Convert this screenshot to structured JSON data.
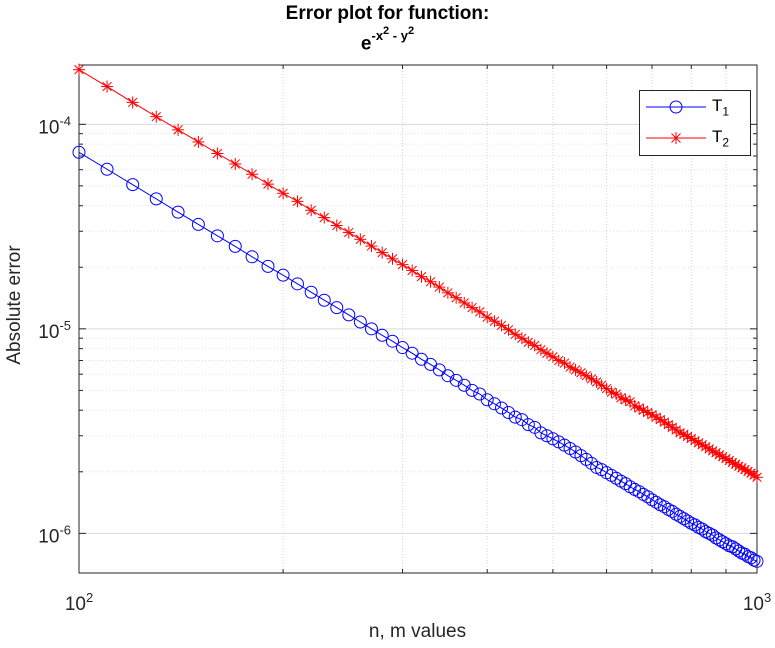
{
  "title": {
    "line1": "Error plot for function:",
    "base": "e",
    "exp_a": "-x",
    "exp_a_pow": "2",
    "exp_mid": " - y",
    "exp_b_pow": "2"
  },
  "chart_data": {
    "type": "line",
    "xscale": "log",
    "yscale": "log",
    "xlim": [
      100,
      1000
    ],
    "ylim": [
      6.4e-07,
      0.000195
    ],
    "xlabel": "n, m values",
    "ylabel": "Absolute error",
    "grid": true,
    "minor_grid": true,
    "legend_position": "top-right",
    "x_ticks": [
      {
        "value": 100,
        "base": "10",
        "exp": "2"
      },
      {
        "value": 1000,
        "base": "10",
        "exp": "3"
      }
    ],
    "y_ticks": [
      {
        "value": 1e-06,
        "base": "10",
        "exp": "-6"
      },
      {
        "value": 1e-05,
        "base": "10",
        "exp": "-5"
      },
      {
        "value": 0.0001,
        "base": "10",
        "exp": "-4"
      }
    ],
    "x": {
      "start": 100,
      "end": 1000,
      "step": 10
    },
    "series": [
      {
        "name": "T",
        "subscript": "1",
        "color": "#0000ff",
        "marker": "circle",
        "values": [
          7.3e-05,
          6.03e-05,
          5.07e-05,
          4.32e-05,
          3.72e-05,
          3.24e-05,
          2.85e-05,
          2.53e-05,
          2.25e-05,
          2.02e-05,
          1.83e-05,
          1.66e-05,
          1.51e-05,
          1.38e-05,
          1.27e-05,
          1.17e-05,
          1.08e-05,
          1e-05,
          9.3e-06,
          8.7e-06,
          8.1e-06,
          7.6e-06,
          7.1e-06,
          6.7e-06,
          6.3e-06,
          5.9e-06,
          5.6e-06,
          5.3e-06,
          5e-06,
          4.8e-06,
          4.5e-06,
          4.3e-06,
          4.1e-06,
          3.9e-06,
          3.7e-06,
          3.6e-06,
          3.4e-06,
          3.3e-06,
          3.1e-06,
          3e-06,
          2.9e-06,
          2.8e-06,
          2.7e-06,
          2.6e-06,
          2.5e-06,
          2.4e-06,
          2.3e-06,
          2.2e-06,
          2.1e-06,
          2.05e-06,
          1.98e-06,
          1.92e-06,
          1.86e-06,
          1.8e-06,
          1.75e-06,
          1.69e-06,
          1.64e-06,
          1.6e-06,
          1.55e-06,
          1.51e-06,
          1.46e-06,
          1.42e-06,
          1.38e-06,
          1.35e-06,
          1.31e-06,
          1.28e-06,
          1.24e-06,
          1.21e-06,
          1.18e-06,
          1.15e-06,
          1.12e-06,
          1.1e-06,
          1.07e-06,
          1.05e-06,
          1.02e-06,
          1e-06,
          9.8e-07,
          9.5e-07,
          9.3e-07,
          9.1e-07,
          8.9e-07,
          8.7e-07,
          8.6e-07,
          8.4e-07,
          8.2e-07,
          8e-07,
          7.9e-07,
          7.7e-07,
          7.6e-07,
          7.4e-07,
          7.3e-07
        ]
      },
      {
        "name": "T",
        "subscript": "2",
        "color": "#ff0000",
        "marker": "asterisk",
        "values": [
          0.000185,
          0.000153,
          0.000128,
          0.000109,
          9.4e-05,
          8.2e-05,
          7.2e-05,
          6.4e-05,
          5.7e-05,
          5.1e-05,
          4.6e-05,
          4.2e-05,
          3.8e-05,
          3.5e-05,
          3.2e-05,
          2.96e-05,
          2.74e-05,
          2.54e-05,
          2.36e-05,
          2.2e-05,
          2.06e-05,
          1.93e-05,
          1.8e-05,
          1.7e-05,
          1.6e-05,
          1.5e-05,
          1.42e-05,
          1.34e-05,
          1.27e-05,
          1.21e-05,
          1.14e-05,
          1.09e-05,
          1.04e-05,
          9.9e-06,
          9.4e-06,
          9e-06,
          8.6e-06,
          8.3e-06,
          7.9e-06,
          7.6e-06,
          7.3e-06,
          7e-06,
          6.8e-06,
          6.5e-06,
          6.3e-06,
          6.1e-06,
          5.9e-06,
          5.7e-06,
          5.5e-06,
          5.3e-06,
          5.1e-06,
          4.9e-06,
          4.8e-06,
          4.6e-06,
          4.5e-06,
          4.4e-06,
          4.2e-06,
          4.1e-06,
          4e-06,
          3.9e-06,
          3.8e-06,
          3.7e-06,
          3.6e-06,
          3.5e-06,
          3.4e-06,
          3.3e-06,
          3.2e-06,
          3.1e-06,
          3.05e-06,
          2.98e-06,
          2.91e-06,
          2.84e-06,
          2.77e-06,
          2.71e-06,
          2.65e-06,
          2.59e-06,
          2.53e-06,
          2.48e-06,
          2.42e-06,
          2.37e-06,
          2.32e-06,
          2.27e-06,
          2.22e-06,
          2.18e-06,
          2.13e-06,
          2.09e-06,
          2.05e-06,
          2.01e-06,
          1.97e-06,
          1.93e-06,
          1.88e-06
        ]
      }
    ]
  }
}
